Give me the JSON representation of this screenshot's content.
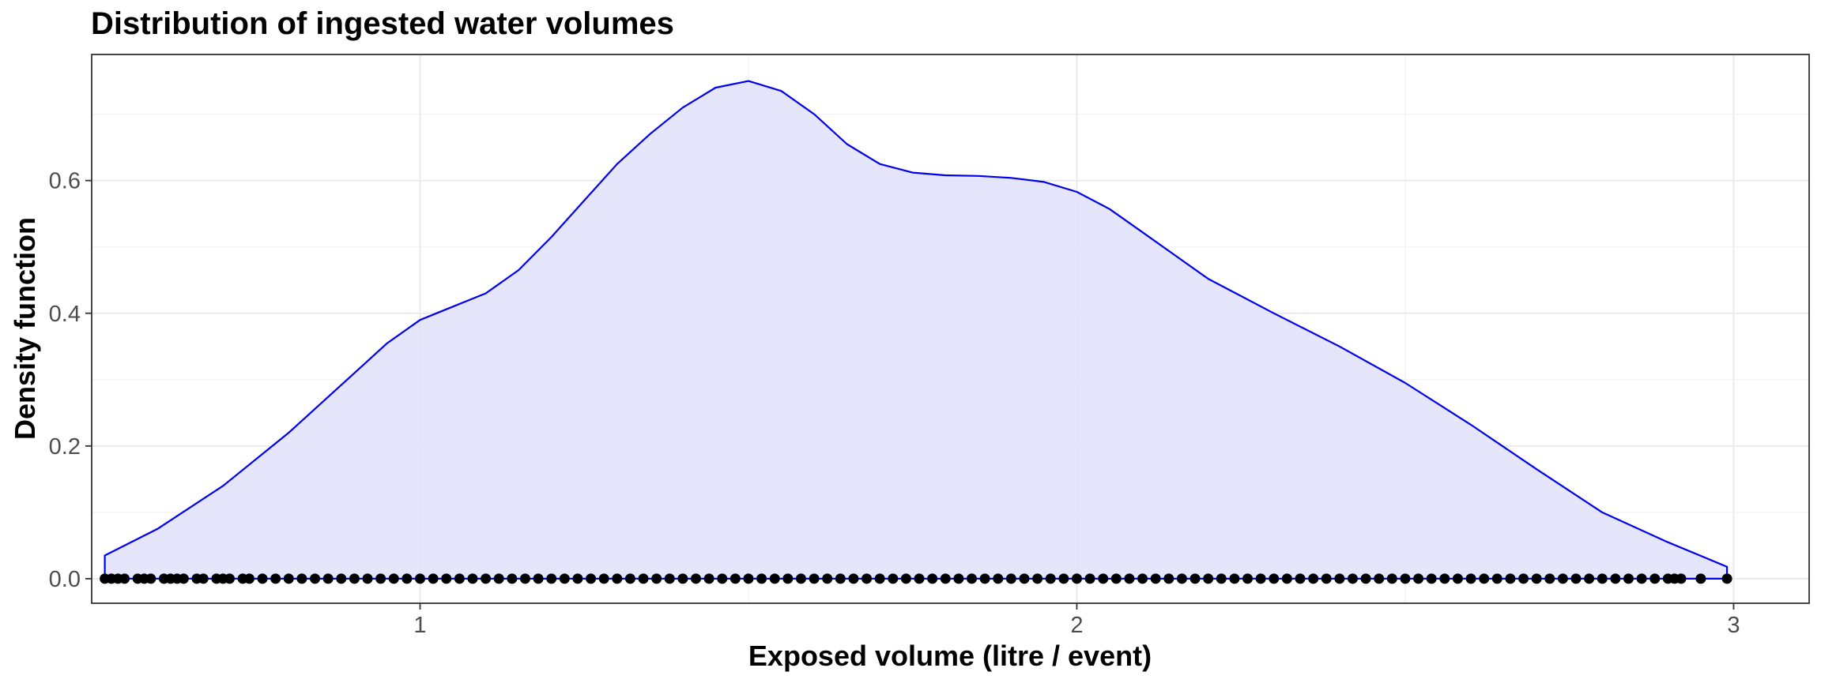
{
  "chart_data": {
    "type": "area",
    "title": "Distribution of ingested water volumes",
    "xlabel": "Exposed volume (litre / event)",
    "ylabel": "Density function",
    "xlim": [
      0.5,
      3.115
    ],
    "ylim": [
      -0.037,
      0.79
    ],
    "x_ticks": [
      1,
      2,
      3
    ],
    "x_tick_labels": [
      "1",
      "2",
      "3"
    ],
    "y_ticks": [
      0.0,
      0.2,
      0.4,
      0.6
    ],
    "y_tick_labels": [
      "0.0",
      "0.2",
      "0.4",
      "0.6"
    ],
    "x_minor_ticks": [
      0.5,
      1.5,
      2.5
    ],
    "y_minor_ticks": [
      0.1,
      0.3,
      0.5,
      0.7
    ],
    "grid": true,
    "series": [
      {
        "kind": "density",
        "stroke_color": "#0000ee",
        "fill_color": "#e1e1fc",
        "x": [
          0.52,
          0.52,
          0.6,
          0.7,
          0.8,
          0.9,
          0.95,
          1.0,
          1.05,
          1.1,
          1.15,
          1.2,
          1.25,
          1.3,
          1.35,
          1.4,
          1.45,
          1.5,
          1.55,
          1.6,
          1.65,
          1.7,
          1.75,
          1.8,
          1.85,
          1.9,
          1.95,
          2.0,
          2.05,
          2.1,
          2.15,
          2.2,
          2.3,
          2.4,
          2.5,
          2.6,
          2.7,
          2.8,
          2.9,
          2.99,
          2.99
        ],
        "y": [
          0.0,
          0.035,
          0.075,
          0.14,
          0.22,
          0.31,
          0.355,
          0.39,
          0.41,
          0.43,
          0.465,
          0.515,
          0.57,
          0.625,
          0.67,
          0.71,
          0.74,
          0.75,
          0.735,
          0.7,
          0.655,
          0.625,
          0.612,
          0.608,
          0.607,
          0.604,
          0.598,
          0.583,
          0.557,
          0.522,
          0.487,
          0.452,
          0.4,
          0.35,
          0.295,
          0.232,
          0.165,
          0.1,
          0.055,
          0.018,
          0.0
        ]
      },
      {
        "kind": "rug",
        "point_color": "#000000",
        "y_value": 0,
        "x": [
          0.52,
          0.53,
          0.54,
          0.55,
          0.57,
          0.58,
          0.59,
          0.61,
          0.62,
          0.63,
          0.64,
          0.66,
          0.67,
          0.69,
          0.7,
          0.71,
          0.73,
          0.74,
          0.76,
          0.78,
          0.8,
          0.82,
          0.84,
          0.86,
          0.88,
          0.9,
          0.92,
          0.94,
          0.96,
          0.98,
          1.0,
          1.02,
          1.04,
          1.06,
          1.08,
          1.1,
          1.12,
          1.14,
          1.16,
          1.18,
          1.2,
          1.22,
          1.24,
          1.26,
          1.28,
          1.3,
          1.32,
          1.34,
          1.36,
          1.38,
          1.4,
          1.42,
          1.44,
          1.46,
          1.48,
          1.5,
          1.52,
          1.54,
          1.56,
          1.58,
          1.6,
          1.62,
          1.64,
          1.66,
          1.68,
          1.7,
          1.72,
          1.74,
          1.76,
          1.78,
          1.8,
          1.82,
          1.84,
          1.86,
          1.88,
          1.9,
          1.92,
          1.94,
          1.96,
          1.98,
          2.0,
          2.02,
          2.04,
          2.06,
          2.08,
          2.1,
          2.12,
          2.14,
          2.16,
          2.18,
          2.2,
          2.22,
          2.24,
          2.26,
          2.28,
          2.3,
          2.32,
          2.34,
          2.36,
          2.38,
          2.4,
          2.42,
          2.44,
          2.46,
          2.48,
          2.5,
          2.52,
          2.54,
          2.56,
          2.58,
          2.6,
          2.62,
          2.64,
          2.66,
          2.68,
          2.7,
          2.72,
          2.74,
          2.76,
          2.78,
          2.8,
          2.82,
          2.84,
          2.86,
          2.88,
          2.9,
          2.91,
          2.92,
          2.95,
          2.99
        ]
      }
    ]
  }
}
